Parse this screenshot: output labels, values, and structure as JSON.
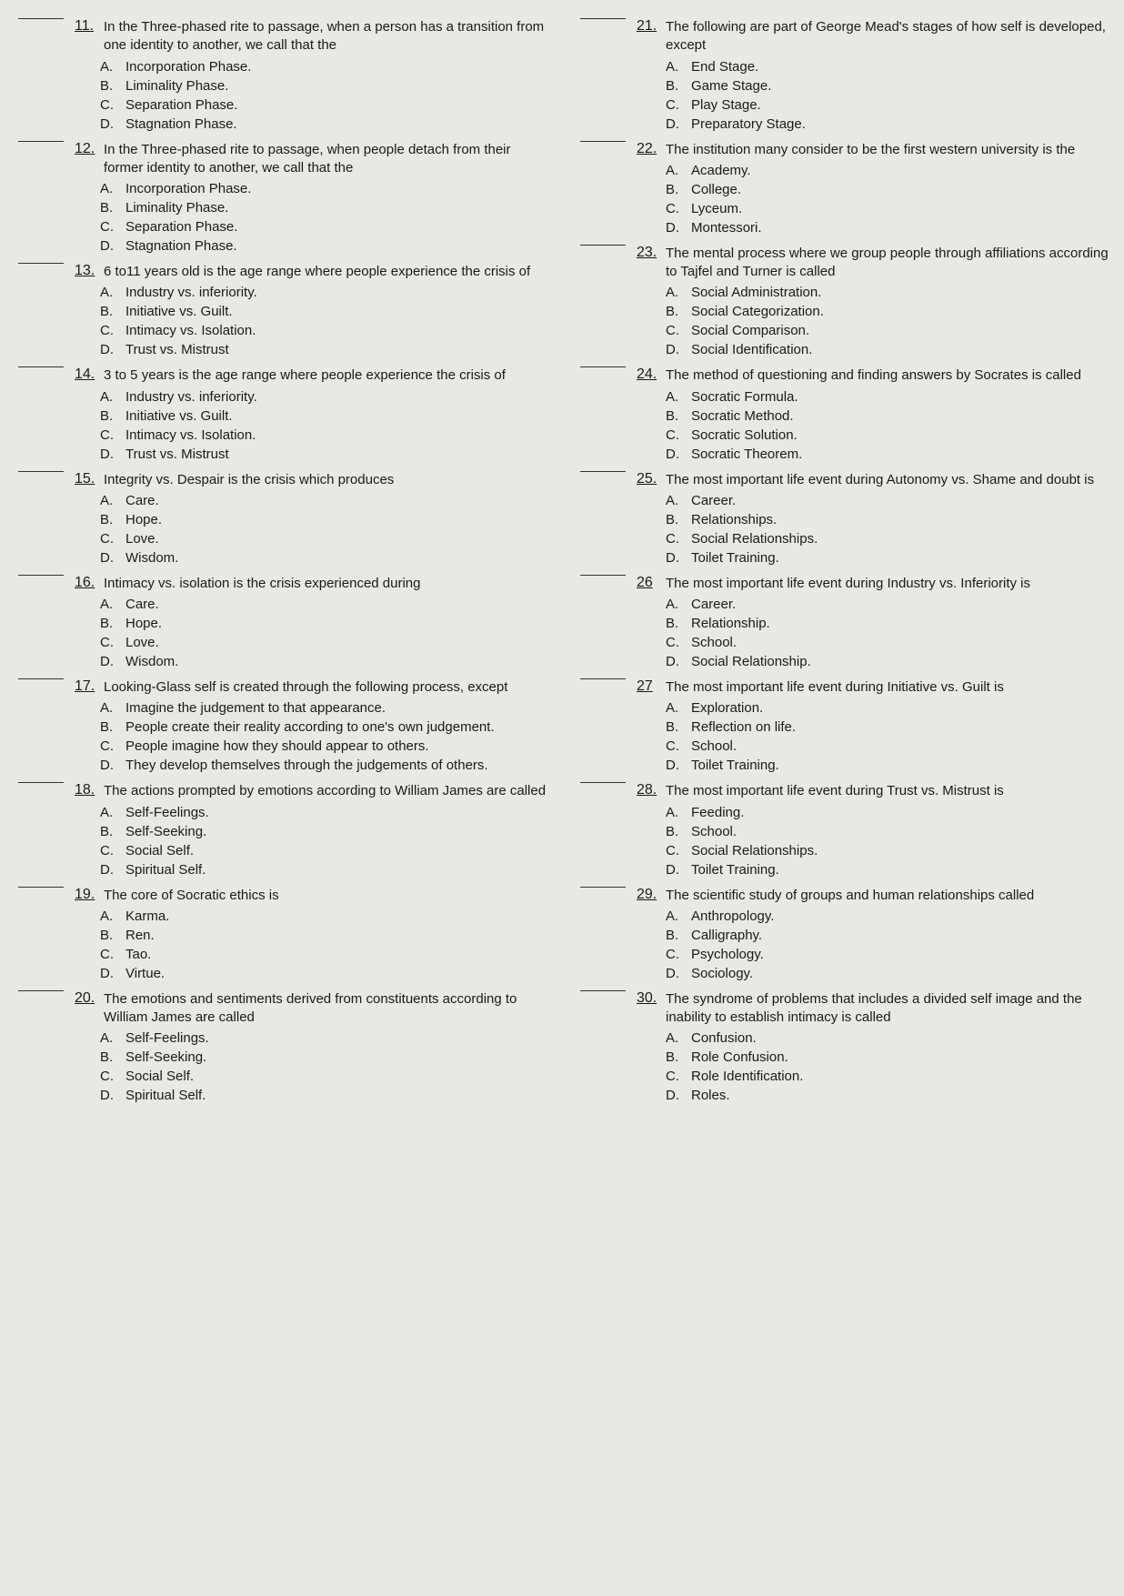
{
  "leftColumn": [
    {
      "num": "11.",
      "text": "In the Three-phased rite to passage, when a person has a transition from one identity to another, we call that the",
      "options": [
        {
          "letter": "A.",
          "text": "Incorporation Phase."
        },
        {
          "letter": "B.",
          "text": "Liminality Phase."
        },
        {
          "letter": "C.",
          "text": "Separation Phase."
        },
        {
          "letter": "D.",
          "text": "Stagnation Phase."
        }
      ]
    },
    {
      "num": "12.",
      "text": "In the Three-phased rite to passage, when people detach from their former identity to another, we call that the",
      "options": [
        {
          "letter": "A.",
          "text": "Incorporation Phase."
        },
        {
          "letter": "B.",
          "text": "Liminality Phase."
        },
        {
          "letter": "C.",
          "text": "Separation Phase."
        },
        {
          "letter": "D.",
          "text": "Stagnation Phase."
        }
      ]
    },
    {
      "num": "13.",
      "text": "6 to11 years old is the age range where people experience the crisis of",
      "options": [
        {
          "letter": "A.",
          "text": "Industry vs. inferiority."
        },
        {
          "letter": "B.",
          "text": "Initiative vs. Guilt."
        },
        {
          "letter": "C.",
          "text": "Intimacy vs. Isolation."
        },
        {
          "letter": "D.",
          "text": "Trust vs. Mistrust"
        }
      ]
    },
    {
      "num": "14.",
      "text": "3 to 5 years is the age range where people experience the crisis of",
      "options": [
        {
          "letter": "A.",
          "text": "Industry vs. inferiority."
        },
        {
          "letter": "B.",
          "text": "Initiative vs. Guilt."
        },
        {
          "letter": "C.",
          "text": "Intimacy vs. Isolation."
        },
        {
          "letter": "D.",
          "text": "Trust vs. Mistrust"
        }
      ]
    },
    {
      "num": "15.",
      "text": "Integrity vs. Despair is the crisis which produces",
      "options": [
        {
          "letter": "A.",
          "text": "Care."
        },
        {
          "letter": "B.",
          "text": "Hope."
        },
        {
          "letter": "C.",
          "text": "Love."
        },
        {
          "letter": "D.",
          "text": "Wisdom."
        }
      ]
    },
    {
      "num": "16.",
      "text": "Intimacy vs. isolation is the crisis experienced during",
      "options": [
        {
          "letter": "A.",
          "text": "Care."
        },
        {
          "letter": "B.",
          "text": "Hope."
        },
        {
          "letter": "C.",
          "text": "Love."
        },
        {
          "letter": "D.",
          "text": "Wisdom."
        }
      ]
    },
    {
      "num": "17.",
      "text": "Looking-Glass self is created through the following process, except",
      "options": [
        {
          "letter": "A.",
          "text": "Imagine the judgement to that appearance."
        },
        {
          "letter": "B.",
          "text": "People create their reality according to one's own judgement."
        },
        {
          "letter": "C.",
          "text": "People imagine how they should appear to others."
        },
        {
          "letter": "D.",
          "text": "They develop themselves through the judgements of others."
        }
      ]
    },
    {
      "num": "18.",
      "text": "The actions prompted by emotions according to William James are called",
      "options": [
        {
          "letter": "A.",
          "text": "Self-Feelings."
        },
        {
          "letter": "B.",
          "text": "Self-Seeking."
        },
        {
          "letter": "C.",
          "text": "Social Self."
        },
        {
          "letter": "D.",
          "text": "Spiritual Self."
        }
      ]
    },
    {
      "num": "19.",
      "text": "The core of Socratic ethics is",
      "options": [
        {
          "letter": "A.",
          "text": "Karma."
        },
        {
          "letter": "B.",
          "text": "Ren."
        },
        {
          "letter": "C.",
          "text": "Tao."
        },
        {
          "letter": "D.",
          "text": "Virtue."
        }
      ]
    },
    {
      "num": "20.",
      "text": "The emotions and sentiments derived from constituents according to William James are called",
      "options": [
        {
          "letter": "A.",
          "text": "Self-Feelings."
        },
        {
          "letter": "B.",
          "text": "Self-Seeking."
        },
        {
          "letter": "C.",
          "text": "Social Self."
        },
        {
          "letter": "D.",
          "text": "Spiritual Self."
        }
      ]
    }
  ],
  "rightColumn": [
    {
      "num": "21.",
      "text": "The following are part of George Mead's stages of how self is developed, except",
      "options": [
        {
          "letter": "A.",
          "text": "End Stage."
        },
        {
          "letter": "B.",
          "text": "Game Stage."
        },
        {
          "letter": "C.",
          "text": "Play Stage."
        },
        {
          "letter": "D.",
          "text": "Preparatory Stage."
        }
      ]
    },
    {
      "num": "22.",
      "text": "The institution many consider to be the first western university is the",
      "options": [
        {
          "letter": "A.",
          "text": "Academy."
        },
        {
          "letter": "B.",
          "text": "College."
        },
        {
          "letter": "C.",
          "text": "Lyceum."
        },
        {
          "letter": "D.",
          "text": "Montessori."
        }
      ]
    },
    {
      "num": "23.",
      "text": "The mental process where we group people through affiliations according to Tajfel and Turner is called",
      "options": [
        {
          "letter": "A.",
          "text": "Social Administration."
        },
        {
          "letter": "B.",
          "text": "Social Categorization."
        },
        {
          "letter": "C.",
          "text": "Social Comparison."
        },
        {
          "letter": "D.",
          "text": "Social Identification."
        }
      ]
    },
    {
      "num": "24.",
      "text": "The method of questioning and finding answers by Socrates is called",
      "options": [
        {
          "letter": "A.",
          "text": "Socratic Formula."
        },
        {
          "letter": "B.",
          "text": "Socratic Method."
        },
        {
          "letter": "C.",
          "text": "Socratic Solution."
        },
        {
          "letter": "D.",
          "text": "Socratic Theorem."
        }
      ]
    },
    {
      "num": "25.",
      "text": "The most important life event during Autonomy vs. Shame and doubt is",
      "options": [
        {
          "letter": "A.",
          "text": "Career."
        },
        {
          "letter": "B.",
          "text": "Relationships."
        },
        {
          "letter": "C.",
          "text": "Social Relationships."
        },
        {
          "letter": "D.",
          "text": "Toilet Training."
        }
      ]
    },
    {
      "num": "26",
      "text": "The most important life event during Industry vs. Inferiority is",
      "options": [
        {
          "letter": "A.",
          "text": "Career."
        },
        {
          "letter": "B.",
          "text": "Relationship."
        },
        {
          "letter": "C.",
          "text": "School."
        },
        {
          "letter": "D.",
          "text": "Social Relationship."
        }
      ]
    },
    {
      "num": "27",
      "text": "The most important life event during Initiative vs. Guilt is",
      "options": [
        {
          "letter": "A.",
          "text": "Exploration."
        },
        {
          "letter": "B.",
          "text": "Reflection on life."
        },
        {
          "letter": "C.",
          "text": "School."
        },
        {
          "letter": "D.",
          "text": "Toilet Training."
        }
      ]
    },
    {
      "num": "28.",
      "text": "The most important life event during Trust vs. Mistrust is",
      "options": [
        {
          "letter": "A.",
          "text": "Feeding."
        },
        {
          "letter": "B.",
          "text": "School."
        },
        {
          "letter": "C.",
          "text": "Social Relationships."
        },
        {
          "letter": "D.",
          "text": "Toilet Training."
        }
      ]
    },
    {
      "num": "29.",
      "text": "The scientific study of groups and human relationships called",
      "options": [
        {
          "letter": "A.",
          "text": "Anthropology."
        },
        {
          "letter": "B.",
          "text": "Calligraphy."
        },
        {
          "letter": "C.",
          "text": "Psychology."
        },
        {
          "letter": "D.",
          "text": "Sociology."
        }
      ]
    },
    {
      "num": "30.",
      "text": "The syndrome of problems that includes a divided self image and the inability to establish intimacy is called",
      "options": [
        {
          "letter": "A.",
          "text": "Confusion."
        },
        {
          "letter": "B.",
          "text": "Role Confusion."
        },
        {
          "letter": "C.",
          "text": "Role Identification."
        },
        {
          "letter": "D.",
          "text": "Roles."
        }
      ]
    }
  ]
}
